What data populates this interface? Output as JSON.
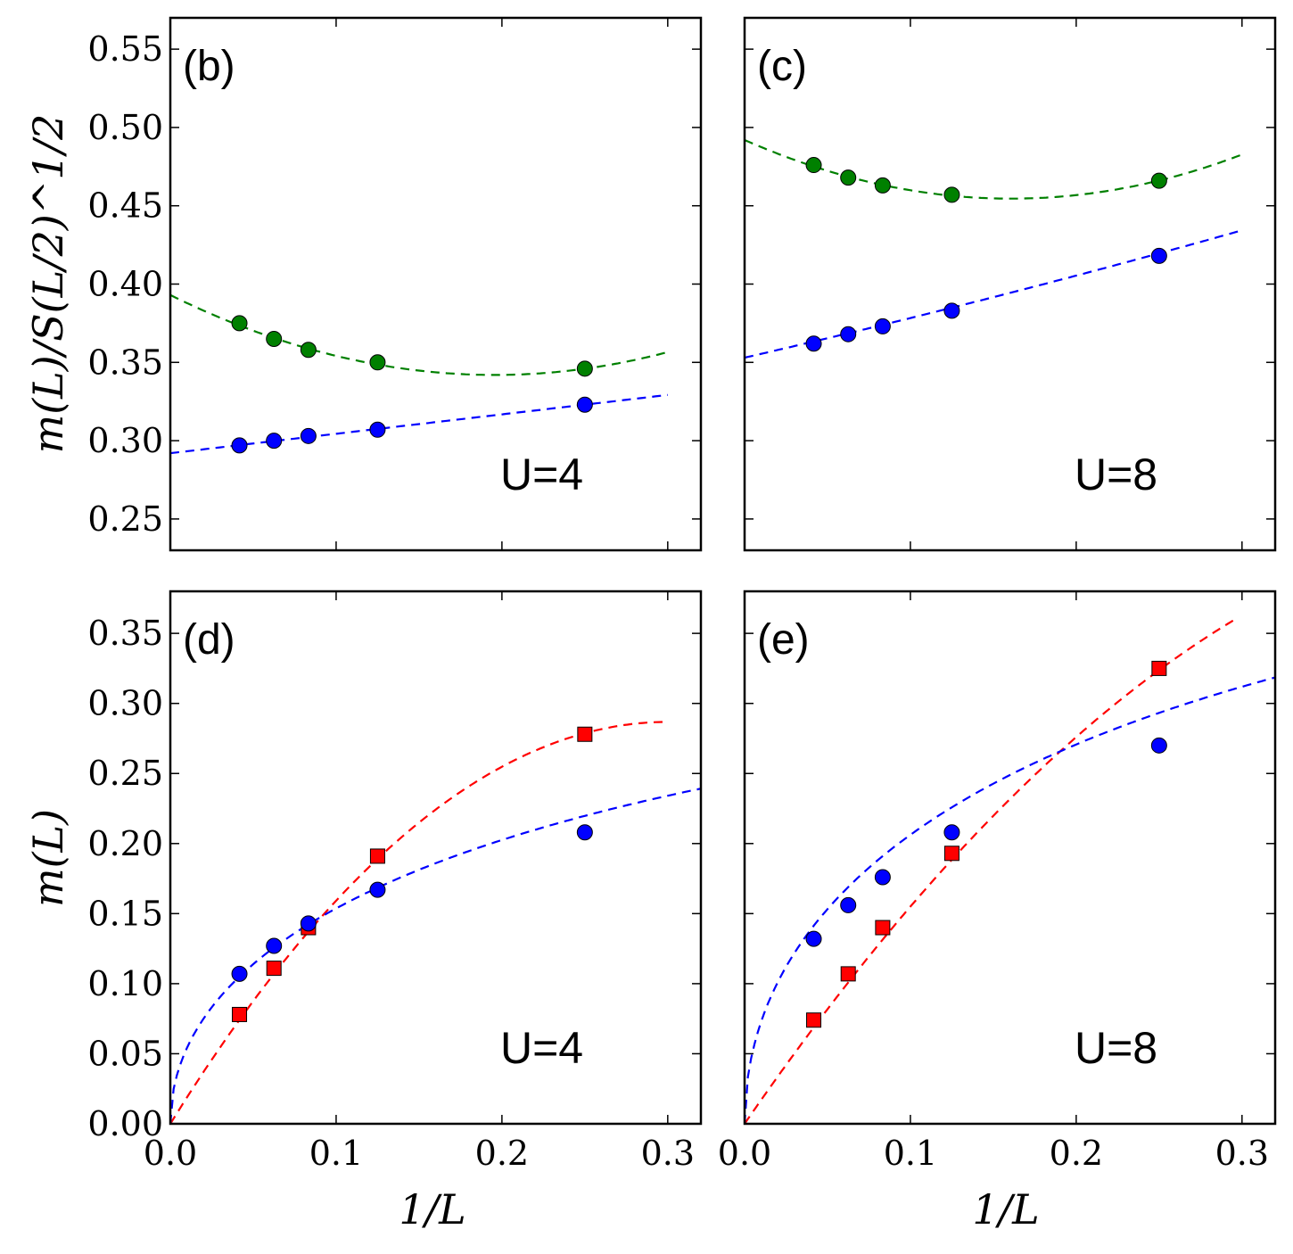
{
  "figure": {
    "ylabel_top": "m(L)/S(L/2)^1/2",
    "ylabel_bottom": "m(L)",
    "xlabel": "1/L"
  },
  "chart_data": [
    {
      "id": "b",
      "type": "scatter",
      "panel_label": "(b)",
      "annotation": "U=4",
      "xlabel": "",
      "ylabel": "m(L)/S(L/2)^1/2",
      "xlim": [
        0,
        0.32
      ],
      "ylim": [
        0.23,
        0.57
      ],
      "xticks": [
        0.0,
        0.1,
        0.2,
        0.3
      ],
      "yticks": [
        "0.25",
        "0.30",
        "0.35",
        "0.40",
        "0.45",
        "0.50",
        "0.55"
      ],
      "show_xticklabels": false,
      "show_yticklabels": true,
      "series": [
        {
          "name": "green",
          "color": "#008000",
          "marker": "circle",
          "x": [
            0.0417,
            0.0625,
            0.0833,
            0.125,
            0.25
          ],
          "y": [
            0.375,
            0.365,
            0.358,
            0.35,
            0.346
          ],
          "fit": {
            "x0": 0.0,
            "x1": 0.3,
            "coeffs": [
              0.393,
              -0.522,
              1.335
            ]
          }
        },
        {
          "name": "blue",
          "color": "#0000ff",
          "marker": "circle",
          "x": [
            0.0417,
            0.0625,
            0.0833,
            0.125,
            0.25
          ],
          "y": [
            0.297,
            0.3,
            0.303,
            0.307,
            0.323
          ],
          "fit": {
            "x0": 0.0,
            "x1": 0.3,
            "coeffs": [
              0.292,
              0.124
            ]
          }
        }
      ]
    },
    {
      "id": "c",
      "type": "scatter",
      "panel_label": "(c)",
      "annotation": "U=8",
      "xlabel": "",
      "ylabel": "",
      "xlim": [
        0,
        0.32
      ],
      "ylim": [
        0.23,
        0.57
      ],
      "xticks": [
        0.0,
        0.1,
        0.2,
        0.3
      ],
      "yticks": [
        "0.25",
        "0.30",
        "0.35",
        "0.40",
        "0.45",
        "0.50",
        "0.55"
      ],
      "show_xticklabels": false,
      "show_yticklabels": false,
      "series": [
        {
          "name": "green",
          "color": "#008000",
          "marker": "circle",
          "x": [
            0.0417,
            0.0625,
            0.0833,
            0.125,
            0.25
          ],
          "y": [
            0.476,
            0.468,
            0.463,
            0.457,
            0.466
          ],
          "fit": {
            "x0": 0.0,
            "x1": 0.3,
            "coeffs": [
              0.492,
              -0.466,
              1.45
            ]
          }
        },
        {
          "name": "blue",
          "color": "#0000ff",
          "marker": "circle",
          "x": [
            0.0417,
            0.0625,
            0.0833,
            0.125,
            0.25
          ],
          "y": [
            0.362,
            0.368,
            0.373,
            0.383,
            0.418
          ],
          "fit": {
            "x0": 0.0,
            "x1": 0.3,
            "coeffs": [
              0.353,
              0.244,
              0.09
            ]
          }
        }
      ]
    },
    {
      "id": "d",
      "type": "scatter",
      "panel_label": "(d)",
      "annotation": "U=4",
      "xlabel": "1/L",
      "ylabel": "m(L)",
      "xlim": [
        0,
        0.32
      ],
      "ylim": [
        0,
        0.38
      ],
      "xticks": [
        0.0,
        0.1,
        0.2,
        0.3
      ],
      "xticklabels": [
        "0.0",
        "0.1",
        "0.2",
        "0.3"
      ],
      "yticks": [
        "0.00",
        "0.05",
        "0.10",
        "0.15",
        "0.20",
        "0.25",
        "0.30",
        "0.35"
      ],
      "show_xticklabels": true,
      "show_yticklabels": true,
      "series": [
        {
          "name": "red",
          "color": "#ff0000",
          "marker": "square",
          "x": [
            0.0417,
            0.0625,
            0.0833,
            0.125,
            0.25
          ],
          "y": [
            0.078,
            0.111,
            0.14,
            0.191,
            0.278
          ],
          "fit": {
            "x0": 0.0,
            "x1": 0.3,
            "coeffs": [
              0.0,
              1.91,
              -3.18
            ]
          }
        },
        {
          "name": "blue",
          "color": "#0000ff",
          "marker": "circle",
          "x": [
            0.0417,
            0.0625,
            0.0833,
            0.125,
            0.25
          ],
          "y": [
            0.107,
            0.127,
            0.143,
            0.167,
            0.208
          ],
          "fit": {
            "x0": 0.0,
            "x1": 0.32,
            "sqrt": true,
            "coeffs": [
              0.0,
              0.566,
              -0.253
            ]
          }
        }
      ]
    },
    {
      "id": "e",
      "type": "scatter",
      "panel_label": "(e)",
      "annotation": "U=8",
      "xlabel": "1/L",
      "ylabel": "",
      "xlim": [
        0,
        0.32
      ],
      "ylim": [
        0,
        0.38
      ],
      "xticks": [
        0.0,
        0.1,
        0.2,
        0.3
      ],
      "xticklabels": [
        "0.0",
        "0.1",
        "0.2",
        "0.3"
      ],
      "yticks": [
        "0.00",
        "0.05",
        "0.10",
        "0.15",
        "0.20",
        "0.25",
        "0.30",
        "0.35"
      ],
      "show_xticklabels": true,
      "show_yticklabels": false,
      "series": [
        {
          "name": "red",
          "color": "#ff0000",
          "marker": "square",
          "x": [
            0.0417,
            0.0625,
            0.0833,
            0.125,
            0.25
          ],
          "y": [
            0.074,
            0.107,
            0.14,
            0.193,
            0.325
          ],
          "fit": {
            "x0": 0.0,
            "x1": 0.295,
            "coeffs": [
              0.0,
              1.72,
              -1.7
            ]
          }
        },
        {
          "name": "blue",
          "color": "#0000ff",
          "marker": "circle",
          "x": [
            0.0417,
            0.0625,
            0.0833,
            0.125,
            0.25
          ],
          "y": [
            0.132,
            0.156,
            0.176,
            0.208,
            0.27
          ],
          "fit": {
            "x0": 0.0,
            "x1": 0.32,
            "sqrt": true,
            "coeffs": [
              0.0,
              0.765,
              -0.357
            ]
          }
        }
      ]
    }
  ]
}
